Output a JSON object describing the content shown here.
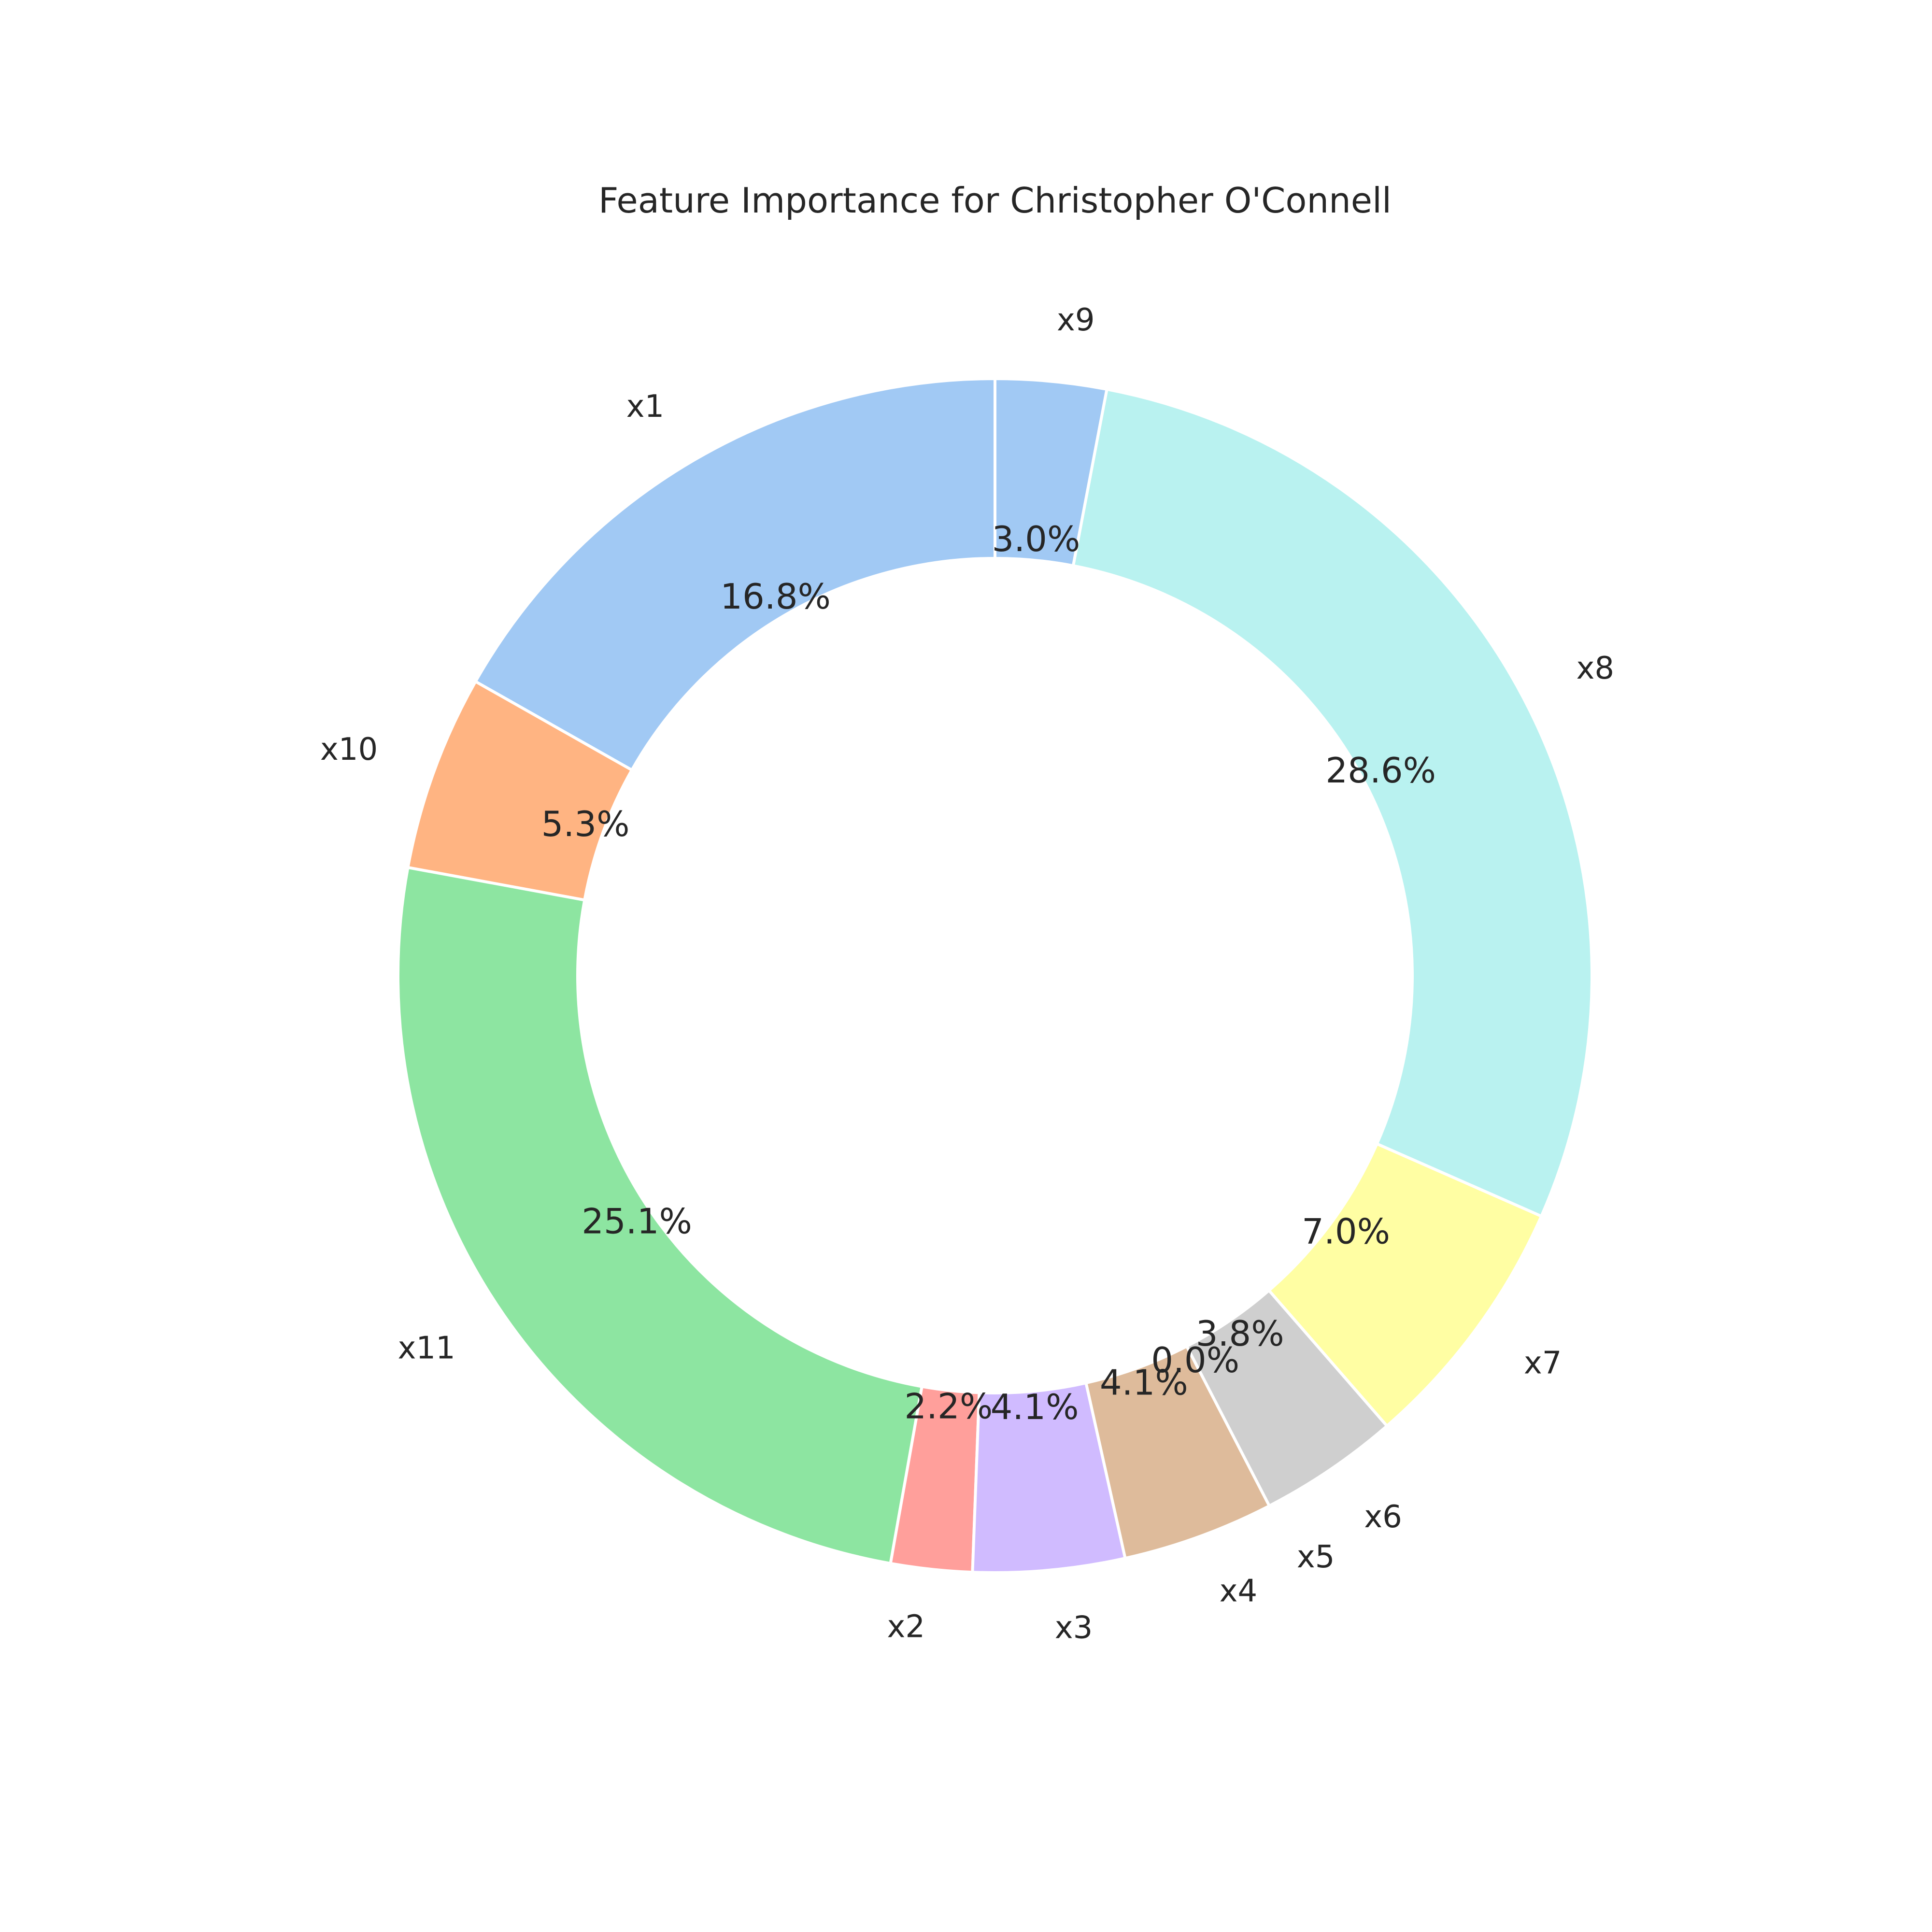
{
  "chart_data": {
    "type": "pie",
    "title": "Feature Importance for Christopher O'Connell",
    "donut": true,
    "start_angle_deg": 90,
    "direction": "counterclockwise",
    "slices": [
      {
        "label": "x1",
        "value": 16.8,
        "pct_label": "16.8%",
        "color": "#a1c9f4"
      },
      {
        "label": "x10",
        "value": 5.3,
        "pct_label": "5.3%",
        "color": "#ffb482"
      },
      {
        "label": "x11",
        "value": 25.1,
        "pct_label": "25.1%",
        "color": "#8de5a1"
      },
      {
        "label": "x2",
        "value": 2.2,
        "pct_label": "2.2%",
        "color": "#ff9f9b"
      },
      {
        "label": "x3",
        "value": 4.1,
        "pct_label": "4.1%",
        "color": "#d0bbff"
      },
      {
        "label": "x4",
        "value": 4.1,
        "pct_label": "4.1%",
        "color": "#debb9b"
      },
      {
        "label": "x5",
        "value": 0.0,
        "pct_label": "0.0%",
        "color": "#fab0e4"
      },
      {
        "label": "x6",
        "value": 3.8,
        "pct_label": "3.8%",
        "color": "#cfcfcf"
      },
      {
        "label": "x7",
        "value": 7.0,
        "pct_label": "7.0%",
        "color": "#fffea3"
      },
      {
        "label": "x8",
        "value": 28.6,
        "pct_label": "28.6%",
        "color": "#b9f2f0"
      },
      {
        "label": "x9",
        "value": 3.0,
        "pct_label": "3.0%",
        "color": "#a1c9f4"
      }
    ]
  }
}
